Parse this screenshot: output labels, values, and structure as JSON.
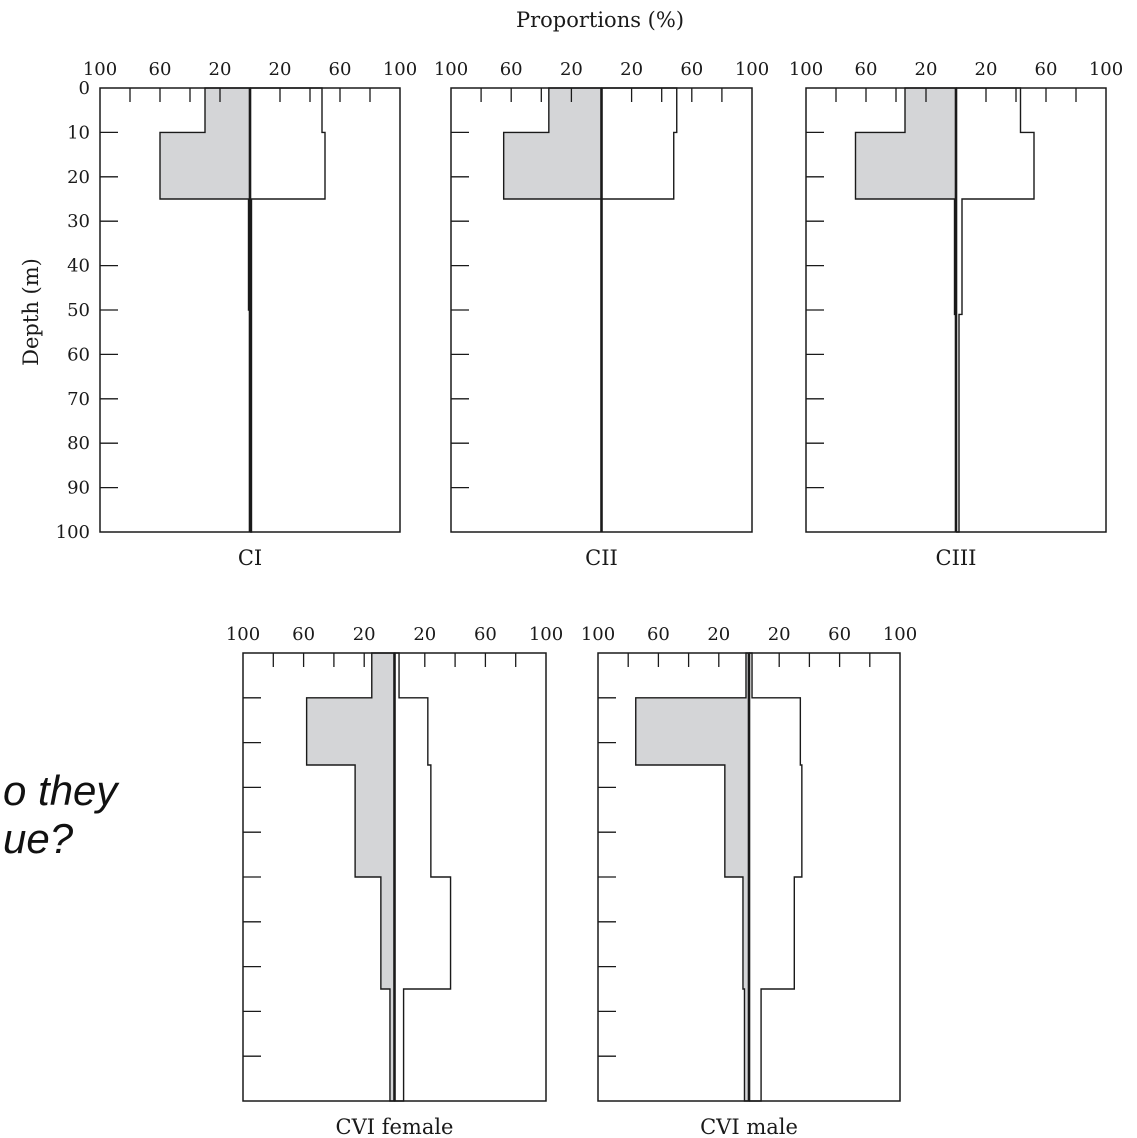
{
  "figure": {
    "title": "Proportions (%)",
    "ylabel": "Depth (m)",
    "yticks": [
      "0",
      "10",
      "20",
      "30",
      "40",
      "50",
      "60",
      "70",
      "80",
      "90",
      "100"
    ],
    "xticks": [
      "100",
      "60",
      "20",
      "20",
      "60",
      "100"
    ]
  },
  "overlay_text": [
    "o they",
    "ue?"
  ],
  "colors": {
    "shade": "#d4d5d7",
    "line": "#1a1a1a"
  },
  "chart_data": [
    {
      "type": "step-profile",
      "label": "CI",
      "depth_unit": "m",
      "ylim": [
        0,
        100
      ],
      "depth_bins": [
        [
          0,
          10
        ],
        [
          10,
          25
        ],
        [
          25,
          50
        ],
        [
          50,
          100
        ]
      ],
      "day_percent": [
        30,
        60,
        1,
        0
      ],
      "night_percent": [
        48,
        50,
        1,
        1
      ]
    },
    {
      "type": "step-profile",
      "label": "CII",
      "depth_unit": "m",
      "ylim": [
        0,
        100
      ],
      "depth_bins": [
        [
          0,
          10
        ],
        [
          10,
          25
        ],
        [
          25,
          100
        ]
      ],
      "day_percent": [
        35,
        65,
        0
      ],
      "night_percent": [
        50,
        48,
        0
      ]
    },
    {
      "type": "step-profile",
      "label": "CIII",
      "depth_unit": "m",
      "ylim": [
        0,
        100
      ],
      "depth_bins": [
        [
          0,
          10
        ],
        [
          10,
          25
        ],
        [
          25,
          51
        ],
        [
          51,
          100
        ]
      ],
      "day_percent": [
        34,
        67,
        1,
        0
      ],
      "night_percent": [
        43,
        52,
        4,
        2
      ]
    },
    {
      "type": "step-profile",
      "label": "CVI female",
      "depth_unit": "m",
      "ylim": [
        0,
        100
      ],
      "depth_bins": [
        [
          0,
          10
        ],
        [
          10,
          25
        ],
        [
          25,
          50
        ],
        [
          50,
          75
        ],
        [
          75,
          100
        ]
      ],
      "day_percent": [
        15,
        58,
        26,
        9,
        3
      ],
      "night_percent": [
        3,
        22,
        24,
        37,
        6
      ]
    },
    {
      "type": "step-profile",
      "label": "CVI male",
      "depth_unit": "m",
      "ylim": [
        0,
        100
      ],
      "depth_bins": [
        [
          0,
          10
        ],
        [
          10,
          25
        ],
        [
          25,
          50
        ],
        [
          50,
          75
        ],
        [
          75,
          100
        ]
      ],
      "day_percent": [
        2,
        75,
        16,
        4,
        3
      ],
      "night_percent": [
        2,
        34,
        35,
        30,
        8
      ]
    }
  ]
}
